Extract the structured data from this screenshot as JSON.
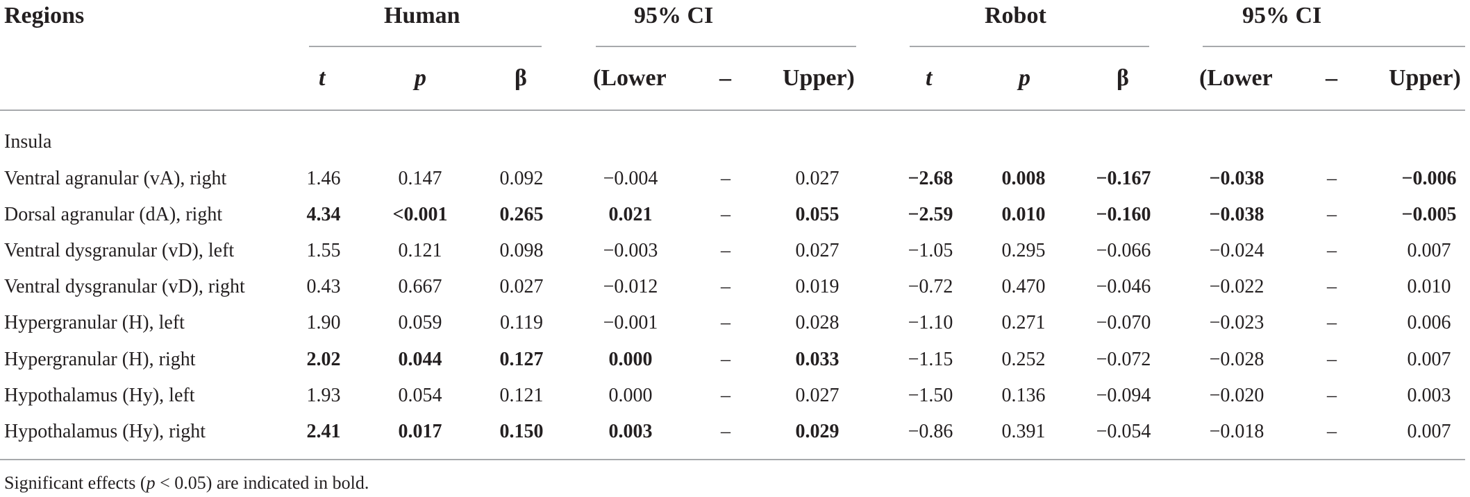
{
  "header": {
    "regions": "Regions",
    "human": "Human",
    "ci_human": "95% CI",
    "robot": "Robot",
    "ci_robot": "95% CI",
    "sub": {
      "t": "t",
      "p": "p",
      "beta": "β",
      "lower": "(Lower",
      "dash": "–",
      "upper": "Upper)"
    }
  },
  "section": "Insula",
  "rows": [
    {
      "label": "Ventral agranular (vA), right",
      "values": [
        "1.46",
        "0.147",
        "0.092",
        "−0.004",
        "–",
        "0.027",
        "−2.68",
        "0.008",
        "−0.167",
        "−0.038",
        "–",
        "−0.006"
      ],
      "bold": [
        false,
        false,
        false,
        false,
        false,
        false,
        true,
        true,
        true,
        true,
        false,
        true
      ]
    },
    {
      "label": "Dorsal agranular (dA), right",
      "values": [
        "4.34",
        "<0.001",
        "0.265",
        "0.021",
        "–",
        "0.055",
        "−2.59",
        "0.010",
        "−0.160",
        "−0.038",
        "–",
        "−0.005"
      ],
      "bold": [
        true,
        true,
        true,
        true,
        false,
        true,
        true,
        true,
        true,
        true,
        false,
        true
      ]
    },
    {
      "label": "Ventral dysgranular (vD), left",
      "values": [
        "1.55",
        "0.121",
        "0.098",
        "−0.003",
        "–",
        "0.027",
        "−1.05",
        "0.295",
        "−0.066",
        "−0.024",
        "–",
        "0.007"
      ],
      "bold": [
        false,
        false,
        false,
        false,
        false,
        false,
        false,
        false,
        false,
        false,
        false,
        false
      ]
    },
    {
      "label": "Ventral dysgranular (vD), right",
      "values": [
        "0.43",
        "0.667",
        "0.027",
        "−0.012",
        "–",
        "0.019",
        "−0.72",
        "0.470",
        "−0.046",
        "−0.022",
        "–",
        "0.010"
      ],
      "bold": [
        false,
        false,
        false,
        false,
        false,
        false,
        false,
        false,
        false,
        false,
        false,
        false
      ]
    },
    {
      "label": "Hypergranular (H), left",
      "values": [
        "1.90",
        "0.059",
        "0.119",
        "−0.001",
        "–",
        "0.028",
        "−1.10",
        "0.271",
        "−0.070",
        "−0.023",
        "–",
        "0.006"
      ],
      "bold": [
        false,
        false,
        false,
        false,
        false,
        false,
        false,
        false,
        false,
        false,
        false,
        false
      ]
    },
    {
      "label": "Hypergranular (H), right",
      "values": [
        "2.02",
        "0.044",
        "0.127",
        "0.000",
        "–",
        "0.033",
        "−1.15",
        "0.252",
        "−0.072",
        "−0.028",
        "–",
        "0.007"
      ],
      "bold": [
        true,
        true,
        true,
        true,
        false,
        true,
        false,
        false,
        false,
        false,
        false,
        false
      ]
    },
    {
      "label": "Hypothalamus (Hy), left",
      "values": [
        "1.93",
        "0.054",
        "0.121",
        "0.000",
        "–",
        "0.027",
        "−1.50",
        "0.136",
        "−0.094",
        "−0.020",
        "–",
        "0.003"
      ],
      "bold": [
        false,
        false,
        false,
        false,
        false,
        false,
        false,
        false,
        false,
        false,
        false,
        false
      ]
    },
    {
      "label": "Hypothalamus (Hy), right",
      "values": [
        "2.41",
        "0.017",
        "0.150",
        "0.003",
        "–",
        "0.029",
        "−0.86",
        "0.391",
        "−0.054",
        "−0.018",
        "–",
        "0.007"
      ],
      "bold": [
        true,
        true,
        true,
        true,
        false,
        true,
        false,
        false,
        false,
        false,
        false,
        false
      ]
    }
  ],
  "footnote": {
    "before": "Significant effects (",
    "p": "p",
    "after": " < 0.05) are indicated in bold."
  }
}
